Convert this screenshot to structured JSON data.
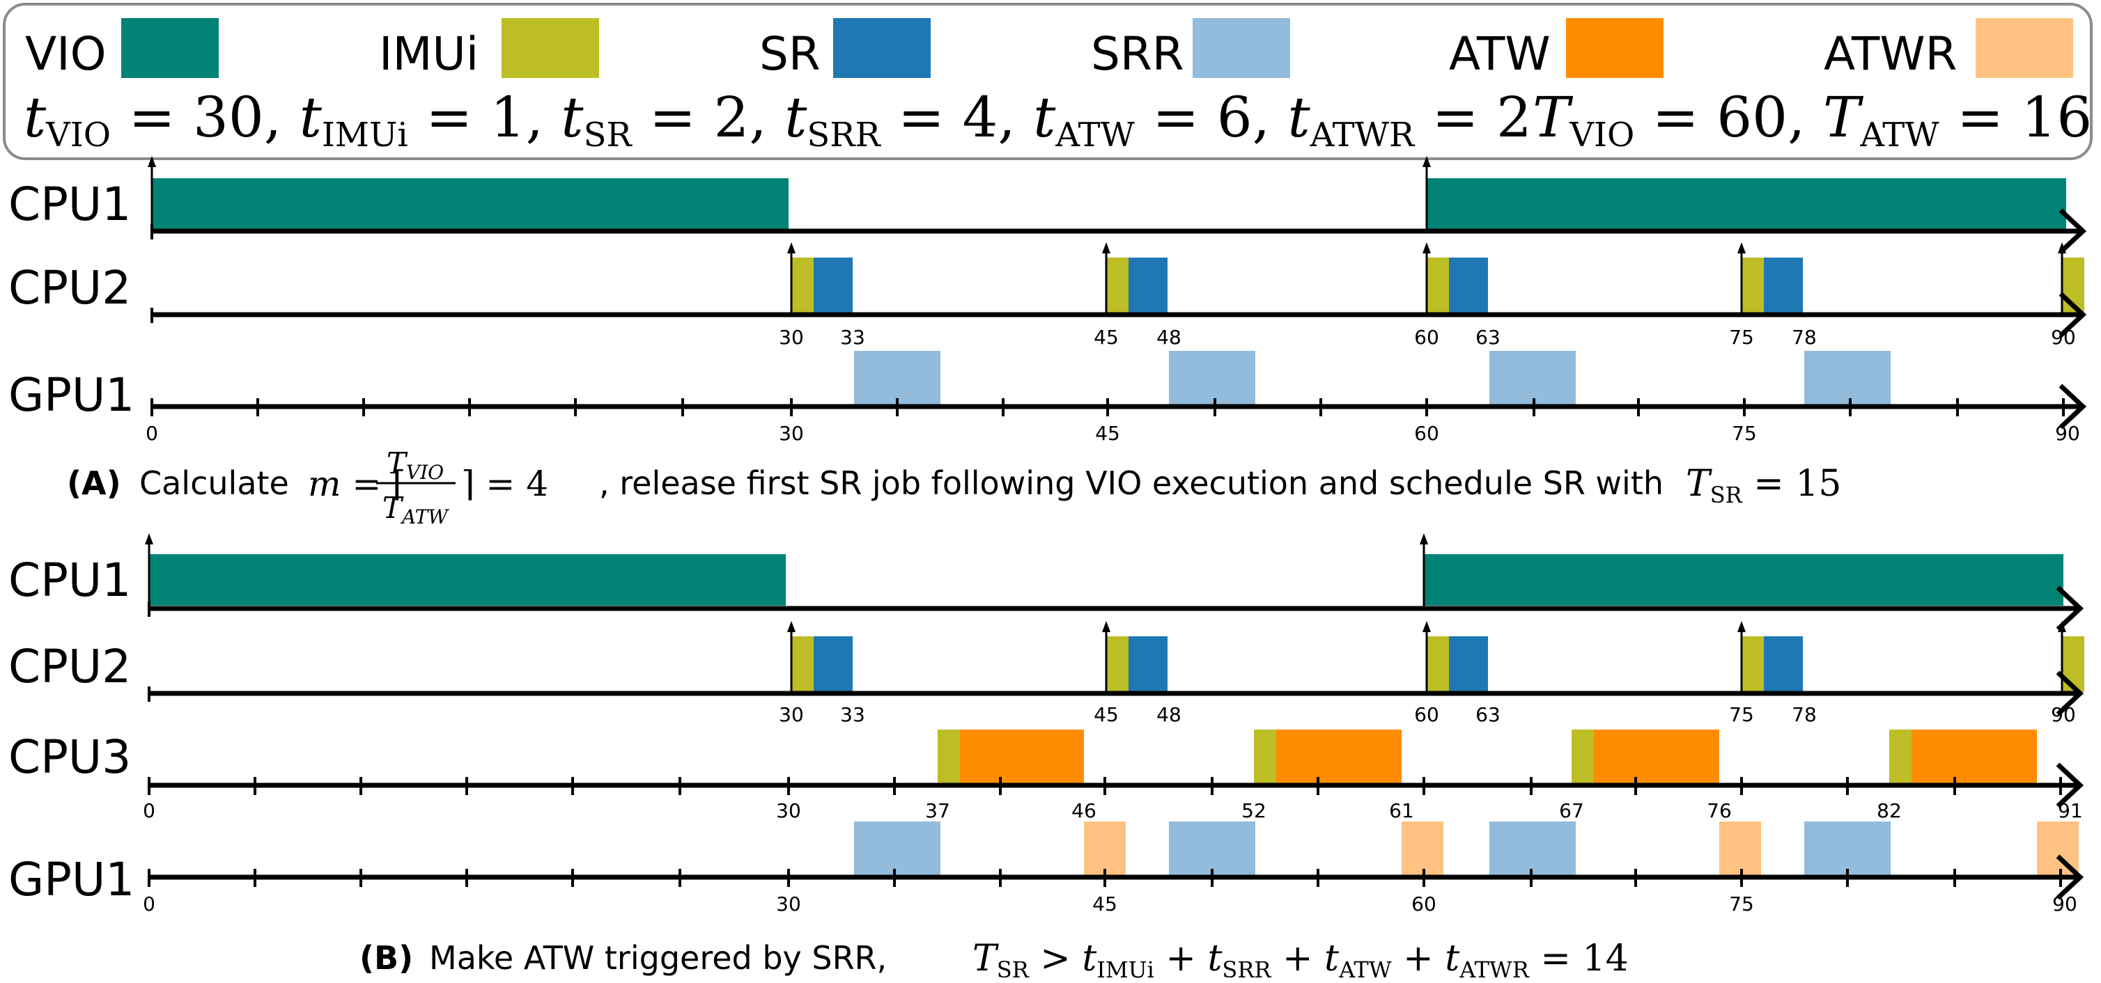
{
  "legend": {
    "items": [
      {
        "name": "VIO",
        "color": "#008275"
      },
      {
        "name": "IMUi",
        "color": "#BDBD25"
      },
      {
        "name": "SR",
        "color": "#1F77B4"
      },
      {
        "name": "SRR",
        "color": "#93BBDB"
      },
      {
        "name": "ATW",
        "color": "#FF8C00"
      },
      {
        "name": "ATWR",
        "color": "#FFC282"
      }
    ],
    "params_left": {
      "t_vio": "30",
      "t_imui": "1",
      "t_sr": "2",
      "t_srr": "4",
      "t_atw": "6",
      "t_atwr": "2"
    },
    "params_right": {
      "T_vio": "60",
      "T_atw": "16"
    }
  },
  "panel_a": {
    "rows": {
      "cpu1": "CPU1",
      "cpu2": "CPU2",
      "gpu1": "GPU1"
    },
    "cpu2_ticks": [
      "30",
      "33",
      "45",
      "48",
      "60",
      "63",
      "75",
      "78",
      "90"
    ],
    "gpu1_ticks": [
      "0",
      "30",
      "45",
      "60",
      "75",
      "90"
    ],
    "caption": {
      "label": "(A)",
      "text_1": "Calculate",
      "m_value": "4",
      "text_2": ", release first SR job following VIO execution and schedule SR with",
      "t_sr_value": "15"
    }
  },
  "panel_b": {
    "rows": {
      "cpu1": "CPU1",
      "cpu2": "CPU2",
      "cpu3": "CPU3",
      "gpu1": "GPU1"
    },
    "cpu2_ticks": [
      "30",
      "33",
      "45",
      "48",
      "60",
      "63",
      "75",
      "78",
      "90"
    ],
    "cpu3_ticks": [
      "0",
      "30",
      "37",
      "46",
      "52",
      "61",
      "67",
      "76",
      "82",
      "91"
    ],
    "gpu1_ticks": [
      "0",
      "30",
      "45",
      "60",
      "75",
      "90"
    ],
    "caption": {
      "label": "(B)",
      "text_1": "Make ATW triggered by SRR,",
      "sum_value": "14"
    }
  }
}
